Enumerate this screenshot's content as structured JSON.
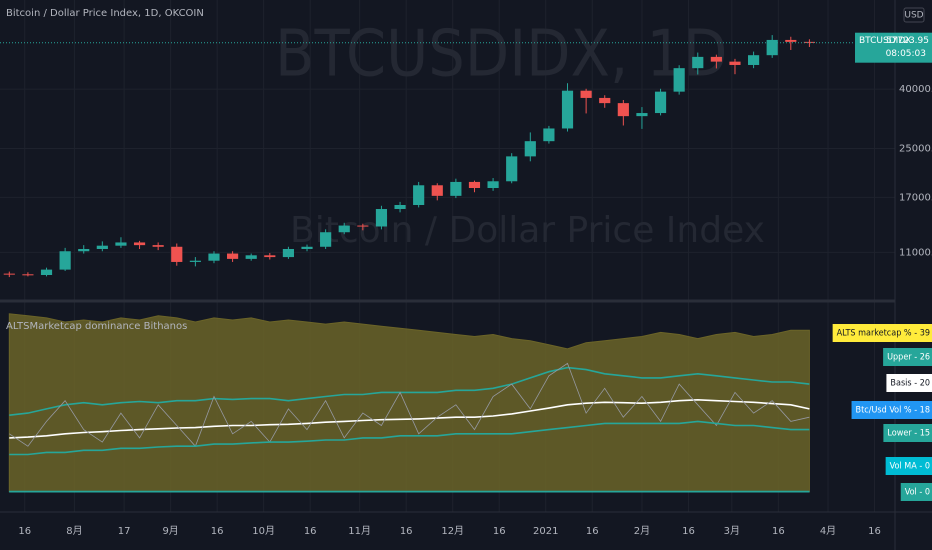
{
  "chart_data": [
    {
      "type": "candlestick",
      "title": "Bitcoin / Dollar Price Index, 1D, OKCOIN",
      "watermark": [
        "BTCUSDIDX, 1D",
        "Bitcoin / Dollar Price Index"
      ],
      "currency": "USD",
      "symbol_tag": "BTCUSDIDX",
      "last_price": 57723.95,
      "countdown": "08:05:03",
      "up_color": "#26a69a",
      "down_color": "#ef5350",
      "log_scale": true,
      "ylim": [
        7550,
        80900
      ],
      "yticks": [
        {
          "value": 11000,
          "label": "11000.00"
        },
        {
          "value": 17000,
          "label": "17000.00"
        },
        {
          "value": 25000,
          "label": "25000.00"
        },
        {
          "value": 40000,
          "label": "40000.00"
        }
      ],
      "xlim": [
        -0.5,
        47.6
      ],
      "xticks": [
        {
          "value": 0.83,
          "label": "16"
        },
        {
          "value": 3.5,
          "label": "8月"
        },
        {
          "value": 6.17,
          "label": "17"
        },
        {
          "value": 8.67,
          "label": "9月"
        },
        {
          "value": 11.17,
          "label": "16"
        },
        {
          "value": 13.67,
          "label": "10月"
        },
        {
          "value": 16.17,
          "label": "16"
        },
        {
          "value": 18.83,
          "label": "11月"
        },
        {
          "value": 21.33,
          "label": "16"
        },
        {
          "value": 23.83,
          "label": "12月"
        },
        {
          "value": 26.33,
          "label": "16"
        },
        {
          "value": 28.83,
          "label": "2021"
        },
        {
          "value": 31.33,
          "label": "16"
        },
        {
          "value": 34,
          "label": "2月"
        },
        {
          "value": 36.5,
          "label": "16"
        },
        {
          "value": 38.83,
          "label": "3月"
        },
        {
          "value": 41.33,
          "label": "16"
        },
        {
          "value": 44,
          "label": "4月"
        },
        {
          "value": 46.5,
          "label": "16"
        }
      ],
      "open": [
        9300,
        9250,
        9200,
        9600,
        11100,
        11300,
        11600,
        11900,
        11650,
        11500,
        10200,
        10300,
        10900,
        10450,
        10750,
        10600,
        11300,
        11500,
        12900,
        13600,
        13500,
        15500,
        16000,
        18700,
        17200,
        19200,
        18300,
        19300,
        23500,
        26500,
        29300,
        39500,
        37300,
        35800,
        32300,
        33100,
        39200,
        47200,
        51600,
        49700,
        48400,
        52300,
        59000,
        58100
      ],
      "high": [
        9450,
        9400,
        9750,
        11400,
        11650,
        12000,
        12400,
        12050,
        11900,
        11800,
        10600,
        11100,
        11100,
        10900,
        10950,
        11500,
        11700,
        13200,
        13900,
        13800,
        15900,
        16400,
        19200,
        19000,
        19700,
        19400,
        19800,
        24100,
        28400,
        29900,
        41900,
        40100,
        38100,
        36700,
        34700,
        40100,
        48300,
        53400,
        52500,
        50800,
        53800,
        61300,
        60500,
        59300
      ],
      "low": [
        9050,
        9100,
        9100,
        9500,
        10900,
        11100,
        11400,
        11300,
        11200,
        9900,
        9850,
        10100,
        10200,
        10300,
        10400,
        10450,
        11100,
        11300,
        12700,
        13100,
        13200,
        15100,
        15700,
        16600,
        16900,
        17700,
        17900,
        19000,
        22600,
        26000,
        28600,
        33000,
        34500,
        30000,
        29200,
        32500,
        38300,
        44900,
        47100,
        45000,
        47200,
        51200,
        54500,
        55800
      ],
      "close": [
        9250,
        9200,
        9600,
        11100,
        11300,
        11600,
        11900,
        11650,
        11500,
        10200,
        10300,
        10900,
        10450,
        10750,
        10600,
        11300,
        11500,
        12900,
        13600,
        13500,
        15500,
        16000,
        18700,
        17200,
        19200,
        18300,
        19300,
        23500,
        26500,
        29300,
        39500,
        37300,
        35800,
        32300,
        33100,
        39200,
        47200,
        51600,
        49700,
        48400,
        52300,
        59000,
        58100,
        57700
      ]
    },
    {
      "type": "line",
      "title": "ALTSMarketcap dominance Bithanos",
      "ylim": [
        -4.9,
        45.6
      ],
      "series": [
        {
          "name": "ALTS marketcap % - 39",
          "color": "#ffeb3b",
          "area_color": "#6b6428",
          "style": "area",
          "values": [
            43,
            42.5,
            42,
            41,
            41.5,
            41,
            42,
            41.5,
            42.5,
            42,
            41,
            42,
            41.5,
            42,
            41,
            41.5,
            41,
            40.5,
            41,
            40.5,
            40,
            39.5,
            39,
            38.5,
            38,
            37.5,
            38,
            37,
            36.5,
            35.5,
            34.5,
            36,
            36.5,
            37,
            37.5,
            38.5,
            38,
            37,
            38,
            38.5,
            37.5,
            38,
            39,
            39
          ]
        },
        {
          "name": "Upper - 26",
          "color": "#26a69a",
          "style": "line",
          "values": [
            18.5,
            19,
            20,
            21,
            21.5,
            21,
            21.5,
            21.8,
            21.5,
            22,
            22,
            22.5,
            22.3,
            22.5,
            22.5,
            22,
            22.5,
            23,
            23.5,
            23.5,
            24,
            24,
            24,
            24,
            24.5,
            24.5,
            25,
            26,
            27.5,
            29,
            30,
            29.5,
            28.5,
            28,
            27.5,
            27.5,
            28,
            28.5,
            28,
            27.5,
            27,
            26.5,
            26.5,
            26
          ]
        },
        {
          "name": "Basis - 20",
          "color": "#ffffff",
          "style": "line",
          "values": [
            13,
            13.2,
            13.5,
            14,
            14.3,
            14.5,
            14.8,
            15,
            15.2,
            15.4,
            15.5,
            15.8,
            16,
            16,
            16.2,
            16.3,
            16.5,
            16.8,
            17,
            17.2,
            17.4,
            17.5,
            17.6,
            17.8,
            18,
            18,
            18.3,
            18.8,
            19.5,
            20.2,
            21,
            21.4,
            21.6,
            21.5,
            21.4,
            21.6,
            22,
            22.2,
            22,
            21.8,
            21.6,
            21.3,
            21,
            20
          ]
        },
        {
          "name": "Btc/Usd Vol % - 18",
          "color": "#2196f3",
          "line_color": "#9598a1",
          "style": "line",
          "values": [
            14,
            11,
            17,
            22,
            15,
            12,
            19,
            13,
            21,
            16,
            11,
            23,
            14,
            17,
            12,
            20,
            15,
            22,
            13,
            19,
            16,
            24,
            14,
            18,
            21,
            15,
            23,
            26,
            20,
            28,
            31,
            19,
            25,
            18,
            23,
            17,
            26,
            21,
            16,
            24,
            19,
            22,
            17,
            18
          ]
        },
        {
          "name": "Lower - 15",
          "color": "#26a69a",
          "style": "line",
          "values": [
            9,
            9,
            9.5,
            9.5,
            10,
            10,
            10.5,
            10.5,
            10.8,
            11,
            11,
            11.5,
            11.5,
            11.8,
            12,
            12,
            12.2,
            12.5,
            12.5,
            13,
            13,
            13.5,
            13.5,
            13.5,
            14,
            14,
            14,
            14,
            14.5,
            15,
            15.5,
            16,
            16.5,
            16.5,
            16.5,
            16.5,
            16.5,
            17,
            16.5,
            16,
            16,
            15.5,
            15,
            15
          ]
        },
        {
          "name": "Vol MA - 0",
          "color": "#00bcd4",
          "style": "line",
          "values": [
            0,
            0,
            0,
            0,
            0,
            0,
            0,
            0,
            0,
            0,
            0,
            0,
            0,
            0,
            0,
            0,
            0,
            0,
            0,
            0,
            0,
            0,
            0,
            0,
            0,
            0,
            0,
            0,
            0,
            0,
            0,
            0,
            0,
            0,
            0,
            0,
            0,
            0,
            0,
            0,
            0,
            0,
            0,
            0
          ]
        },
        {
          "name": "Vol - 0",
          "color": "#26a69a",
          "style": "line",
          "values": [
            0,
            0,
            0,
            0,
            0,
            0,
            0,
            0,
            0,
            0,
            0,
            0,
            0,
            0,
            0,
            0,
            0,
            0,
            0,
            0,
            0,
            0,
            0,
            0,
            0,
            0,
            0,
            0,
            0,
            0,
            0,
            0,
            0,
            0,
            0,
            0,
            0,
            0,
            0,
            0,
            0,
            0,
            0,
            0
          ]
        }
      ]
    }
  ]
}
